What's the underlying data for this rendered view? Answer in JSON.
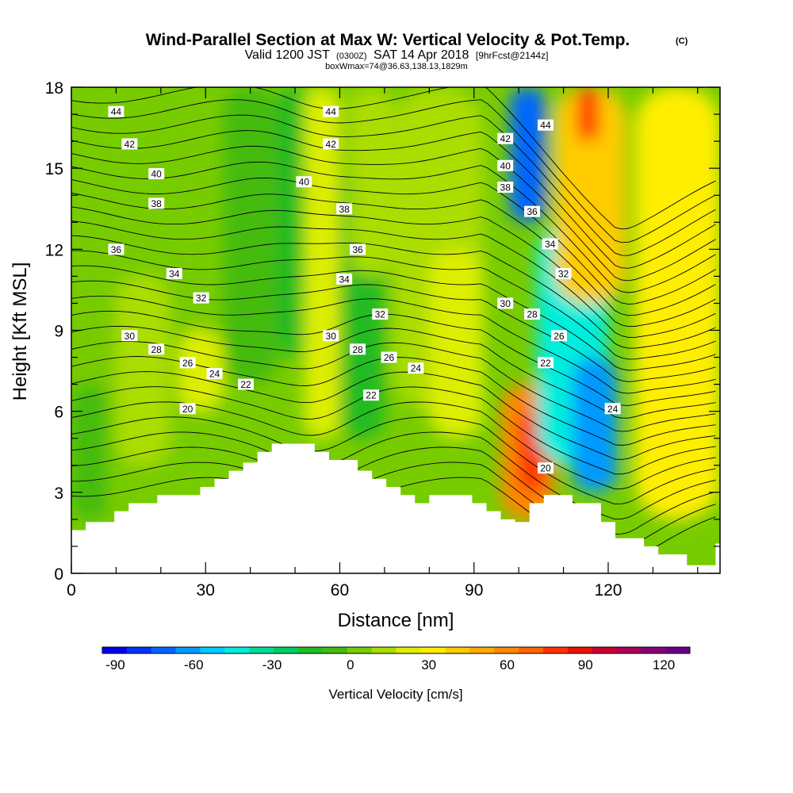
{
  "header": {
    "title": "Wind-Parallel Section at Max W: Vertical Velocity & Pot.Temp.",
    "copyright": "(C)",
    "valid_prefix": "Valid 1200 JST",
    "valid_utc": "(0300Z)",
    "valid_date": "SAT 14 Apr 2018",
    "forecast": "[9hrFcst@2144z]",
    "box_info": "boxWmax=74@36.63,138.13,1829m"
  },
  "chart_data": {
    "type": "heatmap",
    "title": "Wind-Parallel Section at Max W: Vertical Velocity & Pot.Temp.",
    "xlabel": "Distance [nm]",
    "ylabel": "Height [Kft MSL]",
    "xlim": [
      0,
      145
    ],
    "ylim": [
      0,
      18
    ],
    "x_ticks": [
      0,
      30,
      60,
      90,
      120
    ],
    "y_ticks": [
      0,
      3,
      6,
      9,
      12,
      15,
      18
    ],
    "colorbar": {
      "label": "Vertical Velocity [cm/s]",
      "tick_values": [
        -90,
        -60,
        -30,
        0,
        30,
        60,
        90,
        120
      ],
      "range": [
        -95,
        130
      ],
      "colors": [
        "#0000ee",
        "#0033ff",
        "#0066ff",
        "#0099ff",
        "#00ccff",
        "#00eedd",
        "#00dd99",
        "#00cc66",
        "#22bb22",
        "#44bb11",
        "#77cc00",
        "#aadd00",
        "#ddee00",
        "#ffee00",
        "#ffcc00",
        "#ffaa00",
        "#ff8800",
        "#ff6600",
        "#ff3300",
        "#ee1100",
        "#cc0033",
        "#aa0055",
        "#880077",
        "#660088"
      ]
    },
    "terrain": [
      [
        0,
        1.6
      ],
      [
        3.2,
        1.9
      ],
      [
        9.6,
        2.3
      ],
      [
        12.8,
        2.6
      ],
      [
        19.2,
        2.9
      ],
      [
        28.8,
        3.2
      ],
      [
        32,
        3.5
      ],
      [
        35.2,
        3.8
      ],
      [
        38.4,
        4.1
      ],
      [
        41.6,
        4.5
      ],
      [
        44.8,
        4.8
      ],
      [
        54.4,
        4.5
      ],
      [
        57.6,
        4.2
      ],
      [
        64,
        3.8
      ],
      [
        67.2,
        3.5
      ],
      [
        70.4,
        3.2
      ],
      [
        73.6,
        2.9
      ],
      [
        76.8,
        2.6
      ],
      [
        80,
        2.9
      ],
      [
        89.6,
        2.6
      ],
      [
        92.8,
        2.3
      ],
      [
        96,
        2.0
      ],
      [
        99.2,
        1.9
      ],
      [
        102.4,
        2.6
      ],
      [
        105.6,
        2.9
      ],
      [
        112,
        2.6
      ],
      [
        118.4,
        1.9
      ],
      [
        121.6,
        1.3
      ],
      [
        128,
        1.0
      ],
      [
        131.2,
        0.7
      ],
      [
        137.6,
        0.3
      ],
      [
        144,
        1.1
      ]
    ],
    "velocity_field": [
      {
        "x": [
          0,
          8
        ],
        "y": [
          2,
          7
        ],
        "w": -5
      },
      {
        "x": [
          8,
          30
        ],
        "y": [
          2,
          18
        ],
        "w": 5
      },
      {
        "x": [
          10,
          22
        ],
        "y": [
          4,
          11
        ],
        "w": 10
      },
      {
        "x": [
          24,
          34
        ],
        "y": [
          6,
          9
        ],
        "w": 20
      },
      {
        "x": [
          34,
          46
        ],
        "y": [
          7,
          18
        ],
        "w": -8
      },
      {
        "x": [
          46,
          56
        ],
        "y": [
          8,
          18
        ],
        "w": -18
      },
      {
        "x": [
          52,
          60
        ],
        "y": [
          5,
          18
        ],
        "w": 18
      },
      {
        "x": [
          60,
          70
        ],
        "y": [
          5,
          15
        ],
        "w": -15
      },
      {
        "x": [
          62,
          72
        ],
        "y": [
          11,
          18
        ],
        "w": 15
      },
      {
        "x": [
          72,
          92
        ],
        "y": [
          6,
          18
        ],
        "w": 12
      },
      {
        "x": [
          80,
          92
        ],
        "y": [
          5,
          12
        ],
        "w": 25
      },
      {
        "x": [
          96,
          108
        ],
        "y": [
          2,
          7
        ],
        "w": 60
      },
      {
        "x": [
          100,
          106
        ],
        "y": [
          3,
          6
        ],
        "w": 75
      },
      {
        "x": [
          98,
          106
        ],
        "y": [
          13,
          18
        ],
        "w": -75
      },
      {
        "x": [
          104,
          120
        ],
        "y": [
          4,
          13
        ],
        "w": -45
      },
      {
        "x": [
          112,
          122
        ],
        "y": [
          3,
          8
        ],
        "w": -60
      },
      {
        "x": [
          108,
          124
        ],
        "y": [
          10,
          18
        ],
        "w": 45
      },
      {
        "x": [
          113,
          118
        ],
        "y": [
          16,
          18
        ],
        "w": 80
      },
      {
        "x": [
          126,
          145
        ],
        "y": [
          2,
          18
        ],
        "w": 28
      }
    ],
    "theta_contour_labels": [
      {
        "x": 10,
        "y": 17.1,
        "v": "44"
      },
      {
        "x": 13,
        "y": 15.9,
        "v": "42"
      },
      {
        "x": 19,
        "y": 14.8,
        "v": "40"
      },
      {
        "x": 19,
        "y": 13.7,
        "v": "38"
      },
      {
        "x": 10,
        "y": 12.0,
        "v": "36"
      },
      {
        "x": 23,
        "y": 11.1,
        "v": "34"
      },
      {
        "x": 29,
        "y": 10.2,
        "v": "32"
      },
      {
        "x": 13,
        "y": 8.8,
        "v": "30"
      },
      {
        "x": 19,
        "y": 8.3,
        "v": "28"
      },
      {
        "x": 26,
        "y": 7.8,
        "v": "26"
      },
      {
        "x": 32,
        "y": 7.4,
        "v": "24"
      },
      {
        "x": 39,
        "y": 7.0,
        "v": "22"
      },
      {
        "x": 26,
        "y": 6.1,
        "v": "20"
      },
      {
        "x": 58,
        "y": 17.1,
        "v": "44"
      },
      {
        "x": 58,
        "y": 15.9,
        "v": "42"
      },
      {
        "x": 52,
        "y": 14.5,
        "v": "40"
      },
      {
        "x": 61,
        "y": 13.5,
        "v": "38"
      },
      {
        "x": 64,
        "y": 12.0,
        "v": "36"
      },
      {
        "x": 61,
        "y": 10.9,
        "v": "34"
      },
      {
        "x": 69,
        "y": 9.6,
        "v": "32"
      },
      {
        "x": 58,
        "y": 8.8,
        "v": "30"
      },
      {
        "x": 64,
        "y": 8.3,
        "v": "28"
      },
      {
        "x": 71,
        "y": 8.0,
        "v": "26"
      },
      {
        "x": 77,
        "y": 7.6,
        "v": "24"
      },
      {
        "x": 67,
        "y": 6.6,
        "v": "22"
      },
      {
        "x": 97,
        "y": 16.1,
        "v": "42"
      },
      {
        "x": 106,
        "y": 16.6,
        "v": "44"
      },
      {
        "x": 97,
        "y": 15.1,
        "v": "40"
      },
      {
        "x": 97,
        "y": 14.3,
        "v": "38"
      },
      {
        "x": 103,
        "y": 13.4,
        "v": "36"
      },
      {
        "x": 107,
        "y": 12.2,
        "v": "34"
      },
      {
        "x": 110,
        "y": 11.1,
        "v": "32"
      },
      {
        "x": 97,
        "y": 10.0,
        "v": "30"
      },
      {
        "x": 103,
        "y": 9.6,
        "v": "28"
      },
      {
        "x": 109,
        "y": 8.8,
        "v": "26"
      },
      {
        "x": 106,
        "y": 7.8,
        "v": "22"
      },
      {
        "x": 121,
        "y": 6.1,
        "v": "24"
      },
      {
        "x": 106,
        "y": 3.9,
        "v": "20"
      }
    ]
  }
}
